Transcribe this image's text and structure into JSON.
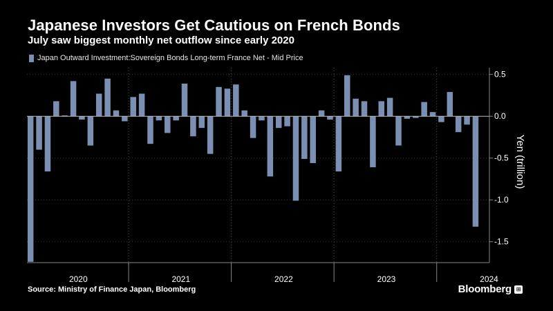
{
  "chart_data": {
    "type": "bar",
    "title": "Japanese Investors Get Cautious on French Bonds",
    "subtitle": "July saw biggest monthly net outflow since early 2020",
    "legend": [
      "Japan Outward Investment:Sovereign Bonds Long-term France Net - Mid Price"
    ],
    "ylabel": "Yen (trillion)",
    "ylim": [
      -1.75,
      0.58
    ],
    "yticks": [
      0.5,
      0.0,
      -0.5,
      -1.0,
      -1.5
    ],
    "ytick_labels": [
      "0.5",
      "0.0",
      "-0.5",
      "-1.0",
      "-1.5"
    ],
    "year_labels": [
      "2020",
      "2021",
      "2022",
      "2023",
      "2024"
    ],
    "start": "2020-01",
    "series": [
      {
        "name": "Japan Outward Investment:Sovereign Bonds Long-term France Net - Mid Price",
        "color": "#7b8fb3",
        "values": [
          -1.74,
          -0.4,
          -0.66,
          0.18,
          0.01,
          0.42,
          -0.04,
          -0.35,
          0.27,
          0.45,
          0.07,
          -0.06,
          0.23,
          0.27,
          -0.33,
          -0.05,
          -0.2,
          -0.05,
          0.39,
          -0.24,
          -0.14,
          -0.45,
          0.35,
          0.33,
          0.38,
          0.07,
          -0.26,
          -0.05,
          -0.72,
          -0.14,
          -0.12,
          -1.01,
          -0.51,
          -0.56,
          0.07,
          -0.04,
          -0.66,
          0.49,
          0.21,
          0.18,
          -0.61,
          0.18,
          0.22,
          -0.35,
          -0.03,
          -0.02,
          0.17,
          0.05,
          -0.07,
          0.29,
          -0.19,
          -0.1,
          -1.32
        ]
      }
    ]
  },
  "source": "Source: Ministry of Finance Japan, Bloomberg",
  "brand": "Bloomberg",
  "brand_badge": "⊞",
  "colors": {
    "background": "#000000",
    "bar": "#7b8fb3",
    "text": "#ffffff",
    "axis": "#8a8a8a"
  }
}
